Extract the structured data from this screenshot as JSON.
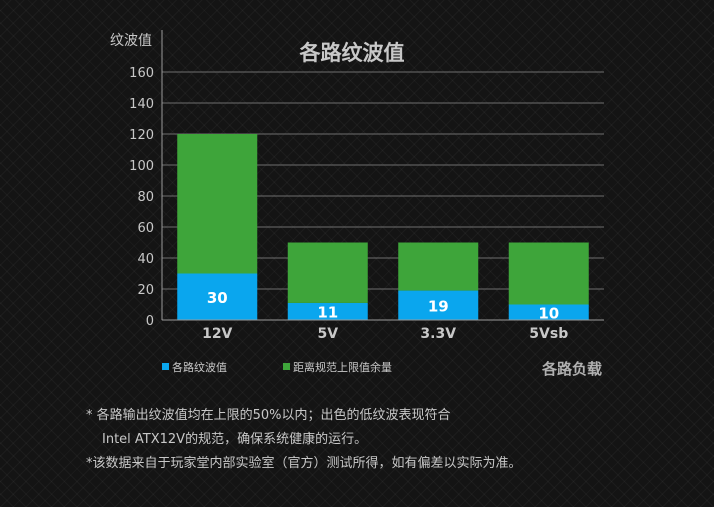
{
  "chart_data": {
    "type": "bar",
    "stacked": true,
    "title": "各路纹波值",
    "ylabel": "纹波值",
    "xlabel": "各路负载",
    "categories": [
      "12V",
      "5V",
      "3.3V",
      "5Vsb"
    ],
    "ylim": [
      0,
      160
    ],
    "yticks": [
      0,
      20,
      40,
      60,
      80,
      100,
      120,
      140,
      160
    ],
    "grid": true,
    "legend_position": "bottom-left",
    "series": [
      {
        "name": "各路纹波值",
        "values": [
          30,
          11,
          19,
          10
        ],
        "color": "#0aa6ee",
        "show_labels": true
      },
      {
        "name": "距离规范上限值余量",
        "values": [
          90,
          39,
          31,
          40
        ],
        "color": "#3ea53a",
        "show_labels": false
      }
    ]
  },
  "notes": {
    "line1": "* 各路输出纹波值均在上限的50%以内；出色的低纹波表现符合",
    "line2": "Intel ATX12V的规范，确保系统健康的运行。",
    "line3": "*该数据来自于玩家堂内部实验室（官方）测试所得，如有偏差以实际为准。"
  }
}
